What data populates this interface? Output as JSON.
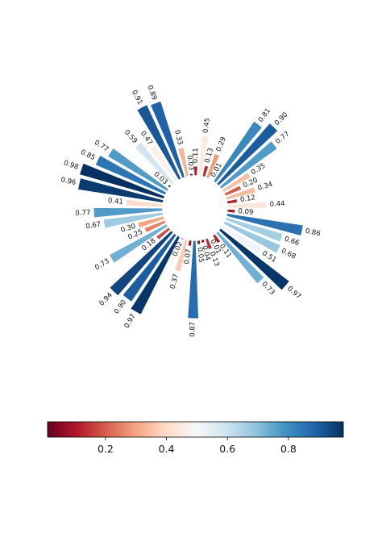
{
  "chart_data": {
    "type": "bar",
    "subtype": "circular-barplot",
    "values": [
      0.81,
      0.9,
      0.77,
      0.35,
      0.2,
      0.34,
      0.12,
      0.44,
      0.09,
      0.86,
      0.66,
      0.68,
      0.51,
      0.97,
      0.73,
      0.11,
      0.01,
      0.13,
      0.04,
      0.05,
      0.87,
      0.07,
      0.37,
      0.02,
      0.97,
      0.9,
      0.94,
      0.18,
      0.73,
      0.25,
      0.3,
      0.67,
      0.77,
      0.41,
      0.96,
      0.98,
      0.85,
      0.77,
      0.03,
      0.59,
      0.47,
      0.91,
      0.89,
      0.33,
      0.03,
      0.11,
      0.45,
      0.13,
      0.29,
      0.01
    ],
    "labels": [
      "0.81",
      "0.90",
      "0.77",
      "0.35",
      "0.20",
      "0.34",
      "0.12",
      "0.44",
      "0.09",
      "0.86",
      "0.66",
      "0.68",
      "0.51",
      "0.97",
      "0.73",
      "0.11",
      "0.01",
      "0.13",
      "0.04",
      "0.05",
      "0.87",
      "0.07",
      "0.37",
      "0.02",
      "0.97",
      "0.90",
      "0.94",
      "0.18",
      "0.73",
      "0.25",
      "0.30",
      "0.67",
      "0.77",
      "0.41",
      "0.96",
      "0.98",
      "0.85",
      "0.77",
      "0.03",
      "0.59",
      "0.47",
      "0.91",
      "0.89",
      "0.33",
      "0.03",
      "0.11",
      "0.45",
      "0.13",
      "0.29",
      "0.01"
    ],
    "colormap": "RdBu",
    "color_range": [
      0.01,
      0.98
    ],
    "colorbar": {
      "orientation": "horizontal",
      "placement": "bottom",
      "ticks": [
        0.2,
        0.4,
        0.6,
        0.8
      ],
      "tick_labels": [
        "0.2",
        "0.4",
        "0.6",
        "0.8"
      ]
    },
    "start_direction": "north-east, clockwise",
    "edge_color": "#ffffff",
    "grid": false
  }
}
